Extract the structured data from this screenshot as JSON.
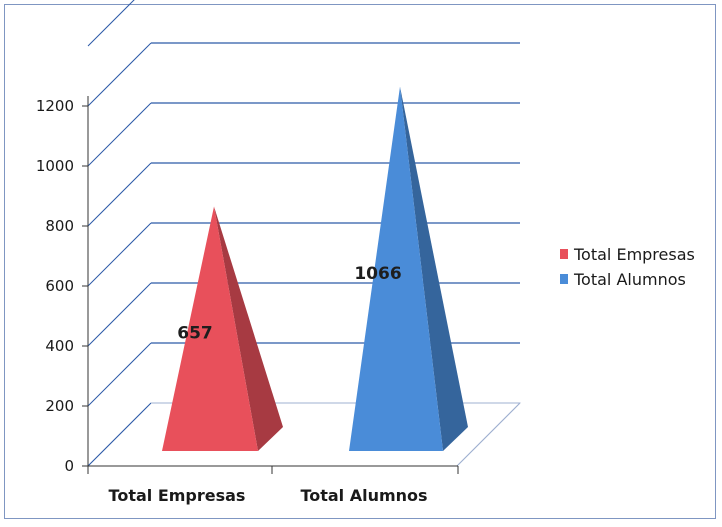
{
  "chart_data": {
    "type": "bar",
    "style": "3d-pyramid",
    "categories": [
      "Total Empresas",
      "Total Alumnos"
    ],
    "series": [
      {
        "name": "Total Empresas",
        "values": [
          657,
          null
        ],
        "color": "#e8505b"
      },
      {
        "name": "Total Alumnos",
        "values": [
          null,
          1066
        ],
        "color": "#4a8cd8"
      }
    ],
    "data_labels": [
      "657",
      "1066"
    ],
    "y_ticks": [
      "0",
      "200",
      "400",
      "600",
      "800",
      "1000",
      "1200"
    ],
    "ylim": [
      0,
      1200
    ],
    "grid": true,
    "legend_position": "right",
    "title": "",
    "xlabel": "",
    "ylabel": ""
  }
}
